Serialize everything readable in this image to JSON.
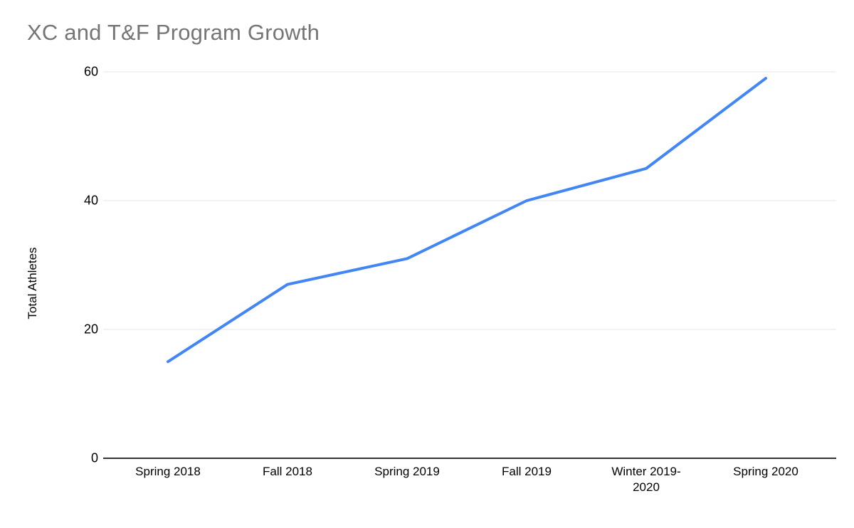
{
  "chart_data": {
    "type": "line",
    "title": "XC and T&F Program Growth",
    "ylabel": "Total Athletes",
    "xlabel": "",
    "categories": [
      "Spring 2018",
      "Fall 2018",
      "Spring 2019",
      "Fall 2019",
      "Winter 2019-2020",
      "Spring 2020"
    ],
    "series": [
      {
        "name": "Total Athletes",
        "values": [
          15,
          27,
          31,
          40,
          45,
          59
        ]
      }
    ],
    "ylim": [
      0,
      60
    ],
    "yticks": [
      0,
      20,
      40,
      60
    ],
    "grid": true,
    "legend": "none",
    "line_color": "#4285f4",
    "grid_color": "#e6e6e6",
    "baseline_color": "#333333",
    "title_color": "#757575",
    "label_color": "#000000"
  }
}
